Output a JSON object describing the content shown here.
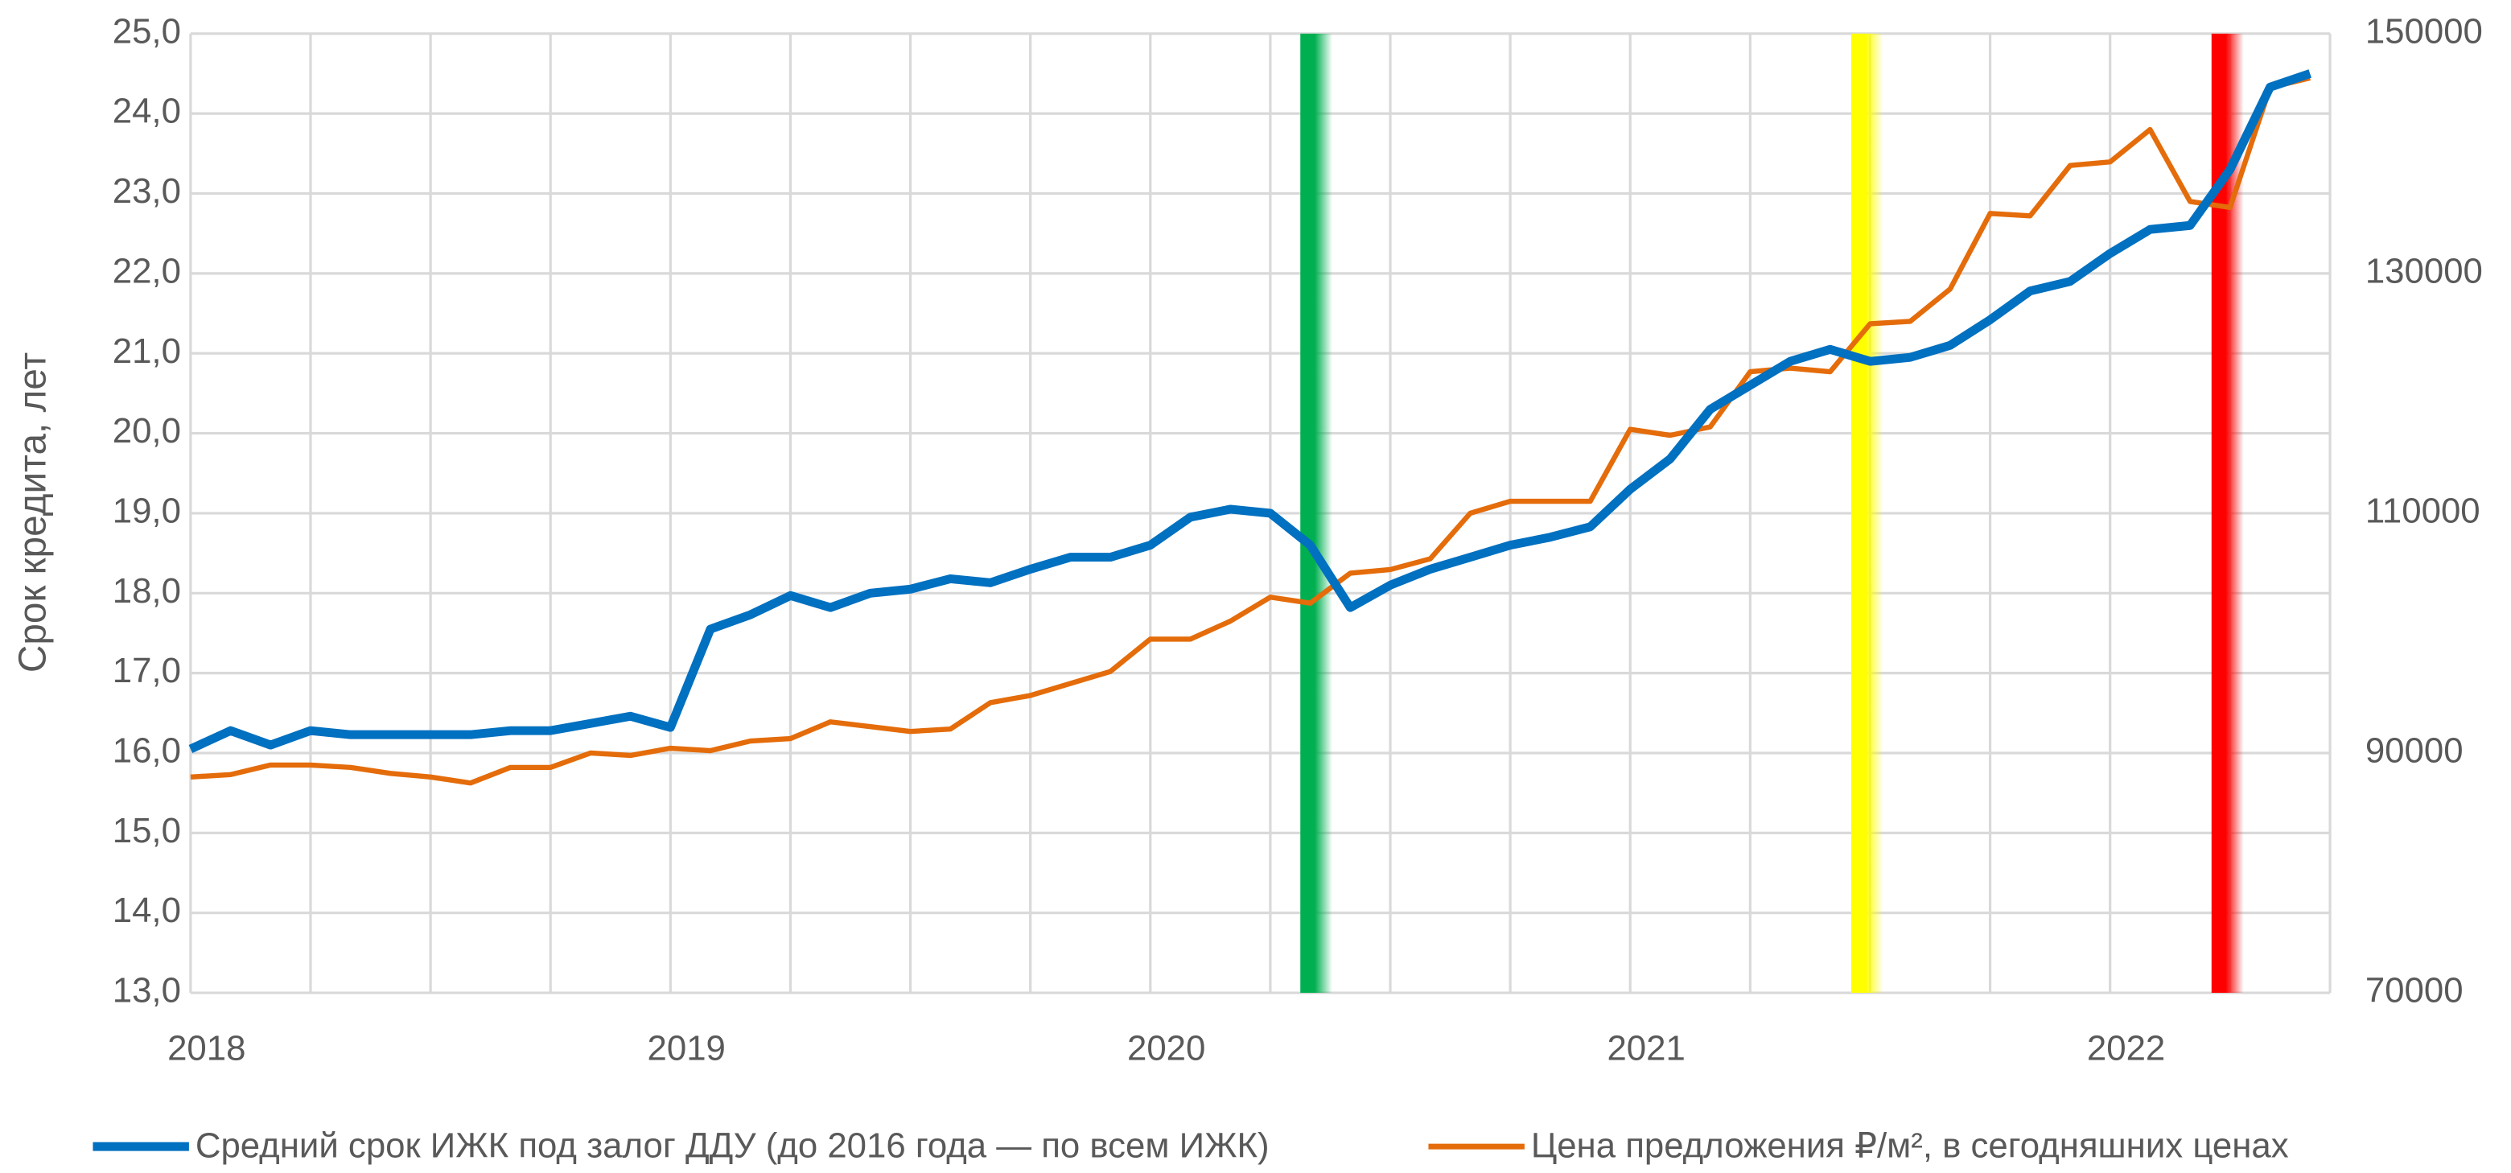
{
  "chart_data": {
    "type": "line",
    "y_label": "Срок кредита, лет",
    "categories": [
      "2018",
      null,
      null,
      null,
      null,
      null,
      null,
      null,
      null,
      null,
      null,
      null,
      "2019",
      null,
      null,
      null,
      null,
      null,
      null,
      null,
      null,
      null,
      null,
      null,
      "2020",
      null,
      null,
      null,
      null,
      null,
      null,
      null,
      null,
      null,
      null,
      null,
      "2021",
      null,
      null,
      null,
      null,
      null,
      null,
      null,
      null,
      null,
      null,
      null,
      "2022",
      null,
      null,
      null,
      null,
      null
    ],
    "series": [
      {
        "name": "Средний срок ИЖК под залог ДДУ (до 2016 года — по всем ИЖК)",
        "color": "#0070c0",
        "axis": "y",
        "values": [
          16.05,
          16.28,
          16.1,
          16.28,
          16.23,
          16.23,
          16.23,
          16.23,
          16.28,
          16.28,
          16.37,
          16.46,
          16.32,
          17.55,
          17.73,
          17.97,
          17.82,
          18.0,
          18.05,
          18.18,
          18.13,
          18.3,
          18.45,
          18.45,
          18.6,
          18.95,
          19.05,
          19.0,
          18.6,
          17.82,
          18.1,
          18.3,
          18.45,
          18.6,
          18.7,
          18.83,
          19.3,
          19.68,
          20.3,
          20.6,
          20.9,
          21.05,
          20.9,
          20.95,
          21.1,
          21.42,
          21.78,
          21.9,
          22.25,
          22.55,
          22.6,
          23.3,
          24.33,
          24.5
        ]
      },
      {
        "name": "Цена предложения ₽/м², в сегодняшних ценах",
        "color": "#e46c0a",
        "axis": "y2",
        "values": [
          88000,
          88200,
          89000,
          89000,
          88800,
          88300,
          88000,
          87500,
          88800,
          88800,
          90000,
          89800,
          90400,
          90200,
          91000,
          91200,
          92600,
          92200,
          91800,
          92000,
          94200,
          94800,
          95800,
          96800,
          99500,
          99500,
          101000,
          103000,
          102500,
          105000,
          105300,
          106200,
          110000,
          111000,
          111000,
          111000,
          117000,
          116500,
          117200,
          121800,
          122100,
          121800,
          125800,
          126000,
          128700,
          135000,
          134800,
          139000,
          139300,
          142000,
          136000,
          135500,
          145500,
          146300
        ]
      }
    ],
    "ylim": [
      13,
      25
    ],
    "yticks": [
      {
        "value": 13,
        "label": "13,0"
      },
      {
        "value": 14,
        "label": "14,0"
      },
      {
        "value": 15,
        "label": "15,0"
      },
      {
        "value": 16,
        "label": "16,0"
      },
      {
        "value": 17,
        "label": "17,0"
      },
      {
        "value": 18,
        "label": "18,0"
      },
      {
        "value": 19,
        "label": "19,0"
      },
      {
        "value": 20,
        "label": "20,0"
      },
      {
        "value": 21,
        "label": "21,0"
      },
      {
        "value": 22,
        "label": "22,0"
      },
      {
        "value": 23,
        "label": "23,0"
      },
      {
        "value": 24,
        "label": "24,0"
      },
      {
        "value": 25,
        "label": "25,0"
      }
    ],
    "y2lim": [
      70000,
      150000
    ],
    "y2ticks": [
      70000,
      90000,
      110000,
      130000,
      150000
    ],
    "grid": true,
    "legend": "bottom"
  }
}
